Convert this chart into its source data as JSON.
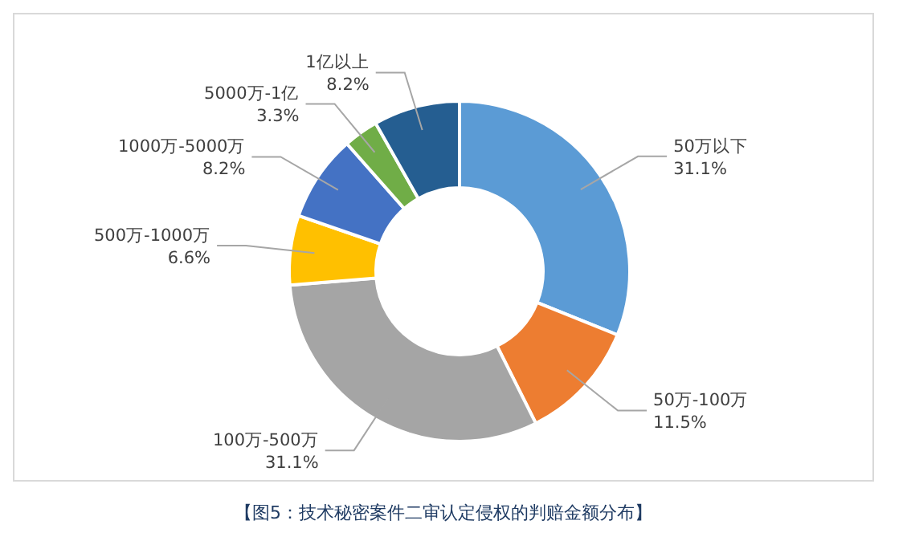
{
  "chart_data": {
    "type": "donut",
    "categories": [
      "50万以下",
      "50万-100万",
      "100万-500万",
      "500万-1000万",
      "1000万-5000万",
      "5000万-1亿",
      "1亿以上"
    ],
    "values": [
      31.1,
      11.5,
      31.1,
      6.6,
      8.2,
      3.3,
      8.2
    ],
    "value_labels": [
      "31.1%",
      "11.5%",
      "31.1%",
      "6.6%",
      "8.2%",
      "3.3%",
      "8.2%"
    ],
    "colors": [
      "#5b9bd5",
      "#ed7d31",
      "#a5a5a5",
      "#ffc000",
      "#4472c4",
      "#70ad47",
      "#255e91"
    ],
    "annotations": [
      "【图5：技术秘密案件二审认定侵权的判赔金额分布】"
    ]
  }
}
